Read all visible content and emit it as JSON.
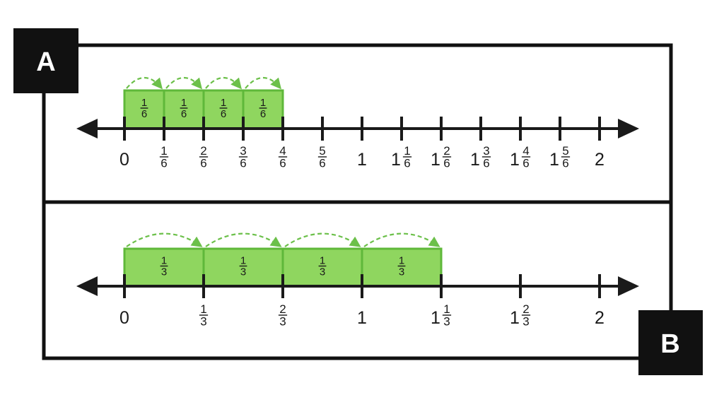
{
  "panels": [
    {
      "label": "A",
      "domain": [
        0,
        2
      ],
      "ticks": [
        {
          "value": 0,
          "whole": "0",
          "num": "",
          "den": ""
        },
        {
          "value": 0.16667,
          "whole": "",
          "num": "1",
          "den": "6"
        },
        {
          "value": 0.33333,
          "whole": "",
          "num": "2",
          "den": "6"
        },
        {
          "value": 0.5,
          "whole": "",
          "num": "3",
          "den": "6"
        },
        {
          "value": 0.66667,
          "whole": "",
          "num": "4",
          "den": "6"
        },
        {
          "value": 0.83333,
          "whole": "",
          "num": "5",
          "den": "6"
        },
        {
          "value": 1,
          "whole": "1",
          "num": "",
          "den": ""
        },
        {
          "value": 1.16667,
          "whole": "1",
          "num": "1",
          "den": "6"
        },
        {
          "value": 1.33333,
          "whole": "1",
          "num": "2",
          "den": "6"
        },
        {
          "value": 1.5,
          "whole": "1",
          "num": "3",
          "den": "6"
        },
        {
          "value": 1.66667,
          "whole": "1",
          "num": "4",
          "den": "6"
        },
        {
          "value": 1.83333,
          "whole": "1",
          "num": "5",
          "den": "6"
        },
        {
          "value": 2,
          "whole": "2",
          "num": "",
          "den": ""
        }
      ],
      "blocks": [
        {
          "from": 0,
          "to": 0.16667,
          "num": "1",
          "den": "6"
        },
        {
          "from": 0.16667,
          "to": 0.33333,
          "num": "1",
          "den": "6"
        },
        {
          "from": 0.33333,
          "to": 0.5,
          "num": "1",
          "den": "6"
        },
        {
          "from": 0.5,
          "to": 0.66667,
          "num": "1",
          "den": "6"
        }
      ]
    },
    {
      "label": "B",
      "domain": [
        0,
        2
      ],
      "ticks": [
        {
          "value": 0,
          "whole": "0",
          "num": "",
          "den": ""
        },
        {
          "value": 0.33333,
          "whole": "",
          "num": "1",
          "den": "3"
        },
        {
          "value": 0.66667,
          "whole": "",
          "num": "2",
          "den": "3"
        },
        {
          "value": 1,
          "whole": "1",
          "num": "",
          "den": ""
        },
        {
          "value": 1.33333,
          "whole": "1",
          "num": "1",
          "den": "3"
        },
        {
          "value": 1.66667,
          "whole": "1",
          "num": "2",
          "den": "3"
        },
        {
          "value": 2,
          "whole": "2",
          "num": "",
          "den": ""
        }
      ],
      "blocks": [
        {
          "from": 0,
          "to": 0.33333,
          "num": "1",
          "den": "3"
        },
        {
          "from": 0.33333,
          "to": 0.66667,
          "num": "1",
          "den": "3"
        },
        {
          "from": 0.66667,
          "to": 1,
          "num": "1",
          "den": "3"
        },
        {
          "from": 1,
          "to": 1.33333,
          "num": "1",
          "den": "3"
        }
      ]
    }
  ],
  "colors": {
    "block_fill": "#8fd65f",
    "block_stroke": "#5fb83a",
    "arc": "#6cc04a",
    "line": "#1a1a1a",
    "label_box": "#111111",
    "label_text": "#ffffff"
  }
}
